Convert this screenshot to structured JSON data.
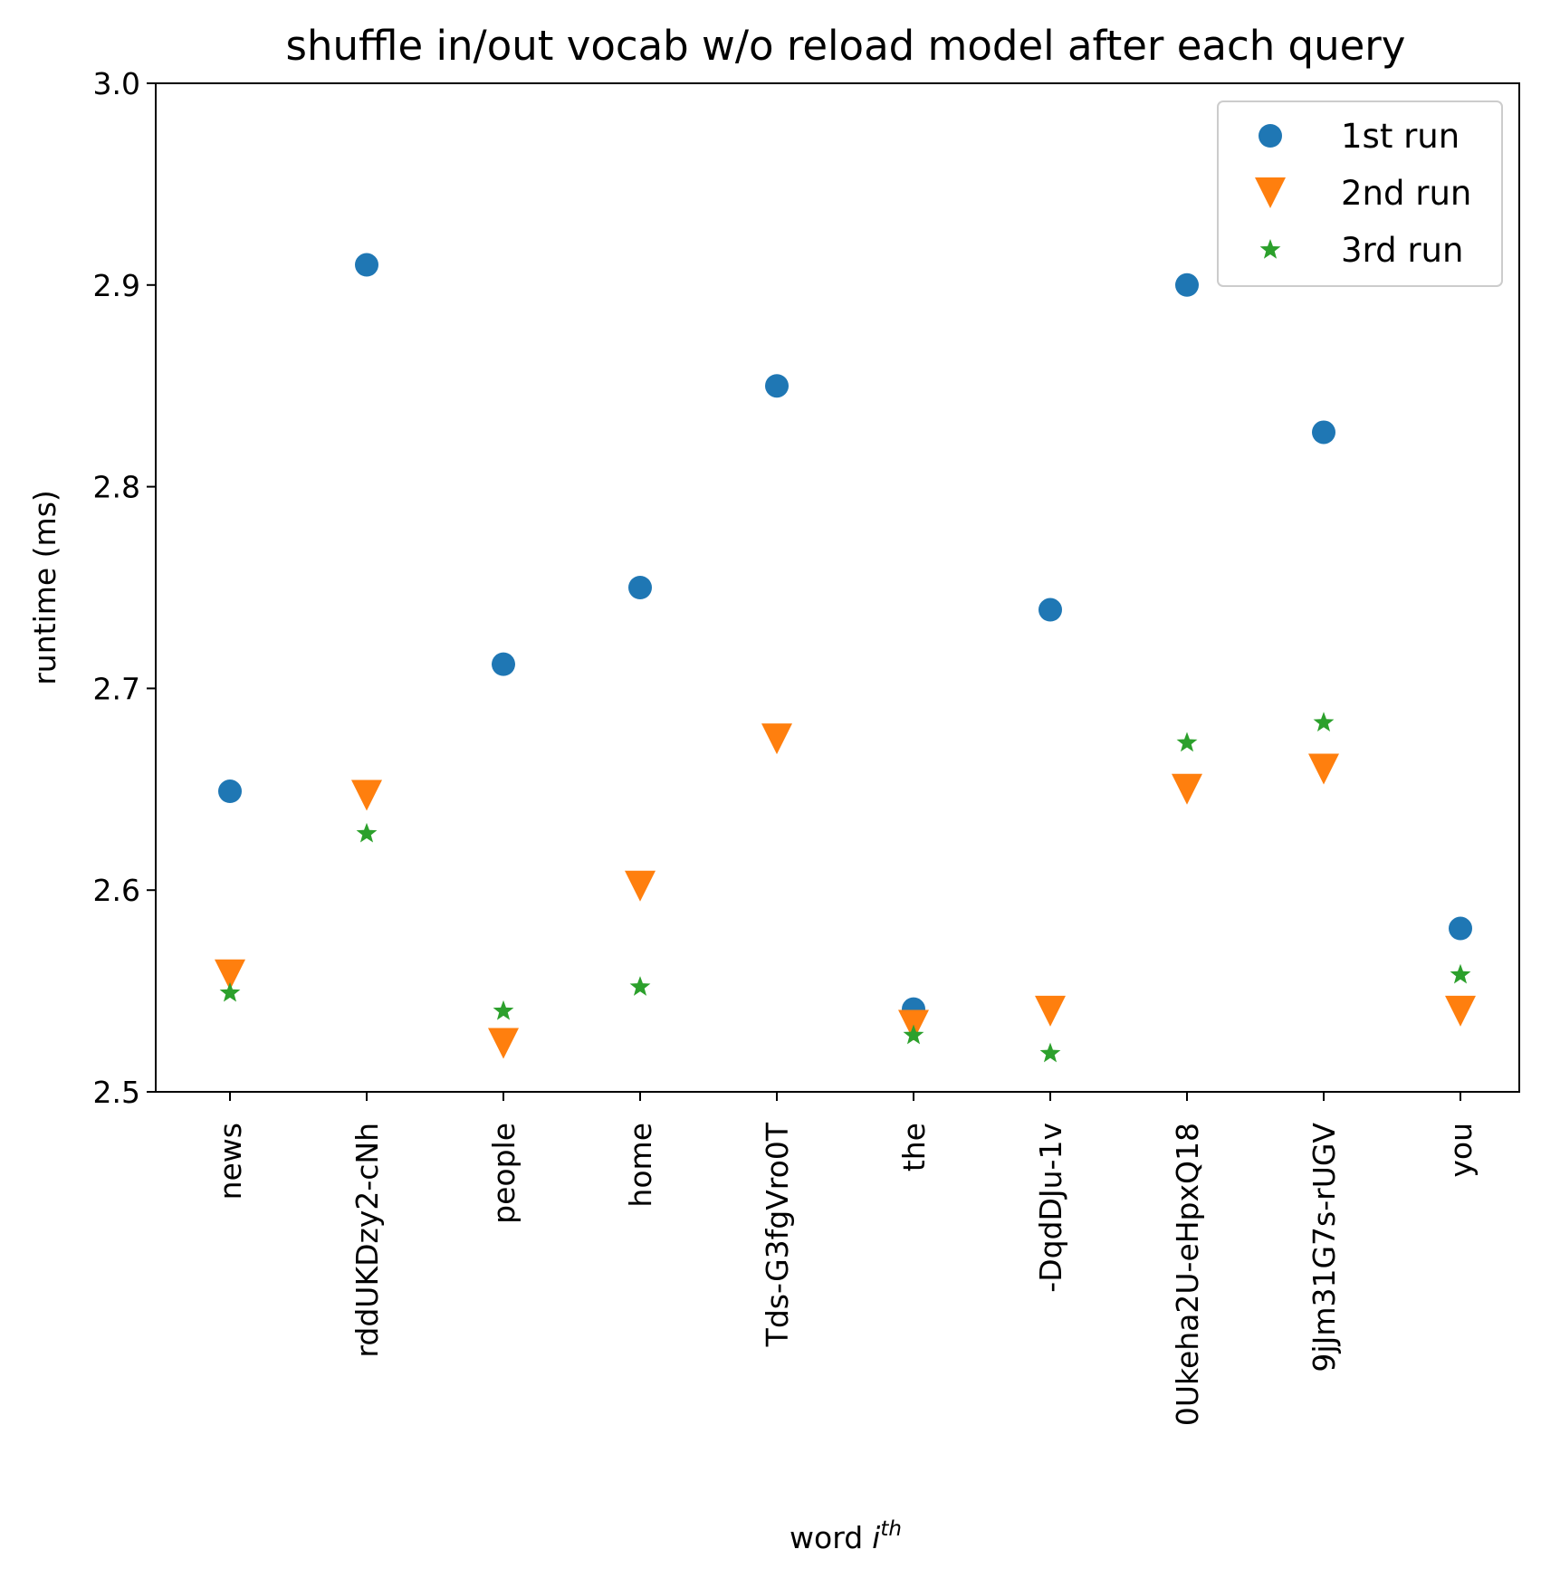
{
  "chart_data": {
    "type": "scatter",
    "title": "shuffle in/out vocab w/o reload model after each query",
    "xlabel": "word",
    "xlabel_math": "i",
    "xlabel_sup": "th",
    "ylabel": "runtime (ms)",
    "ylim": [
      2.5,
      3.0
    ],
    "yticks": [
      "2.5",
      "2.6",
      "2.7",
      "2.8",
      "2.9",
      "3.0"
    ],
    "categories": [
      "news",
      "rddUKDzy2-cNh",
      "people",
      "home",
      "Tds-G3fgVro0T",
      "the",
      "-DqdDJu-1v",
      "0Ukeha2U-eHpxQ18",
      "9jJm31G7s-rUGV",
      "you"
    ],
    "grid": false,
    "legend_position": "top-right",
    "series": [
      {
        "name": "1st run",
        "marker": "circle",
        "color": "#1f77b4",
        "values": [
          2.649,
          2.91,
          2.712,
          2.75,
          2.85,
          2.541,
          2.739,
          2.9,
          2.827,
          2.581
        ]
      },
      {
        "name": "2nd run",
        "marker": "triangle-down",
        "color": "#ff7f0e",
        "values": [
          2.558,
          2.647,
          2.524,
          2.602,
          2.675,
          2.533,
          2.54,
          2.65,
          2.66,
          2.54
        ]
      },
      {
        "name": "3rd run",
        "marker": "star",
        "color": "#2ca02c",
        "values": [
          2.549,
          2.628,
          2.54,
          2.552,
          null,
          2.528,
          2.519,
          2.673,
          2.683,
          2.558
        ]
      }
    ]
  }
}
